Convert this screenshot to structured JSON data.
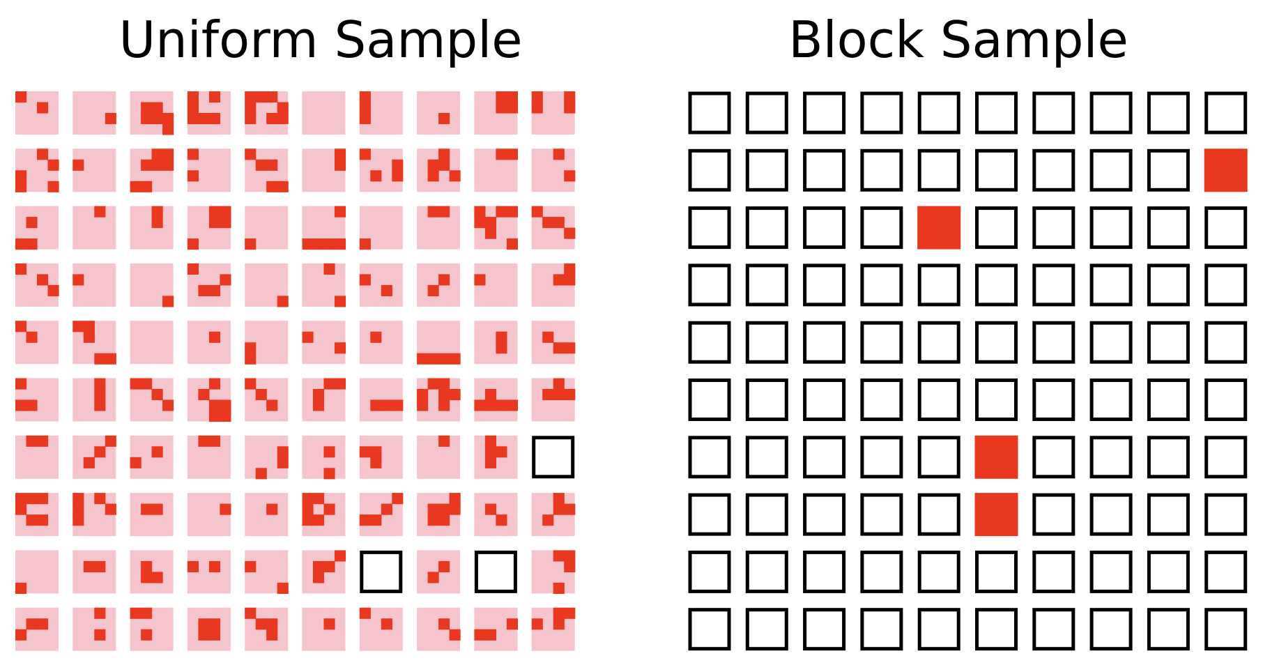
{
  "panels": {
    "uniform": {
      "title": "Uniform Sample"
    },
    "block": {
      "title": "Block Sample"
    }
  },
  "colors": {
    "tile_background": "#f5c4cc",
    "active_cell": "#e8381f",
    "empty_outline": "#000000",
    "page_background": "#ffffff"
  },
  "grid": {
    "rows": 10,
    "cols": 10,
    "sub_cells": 4
  },
  "uniform_tiles": [
    [
      [
        "1000",
        "0010",
        "0000",
        "0000"
      ],
      [
        "0000",
        "0000",
        "0001",
        "0000"
      ],
      [
        "0000",
        "0110",
        "0111",
        "0001"
      ],
      [
        "1010",
        "1000",
        "1110",
        "0000"
      ],
      [
        "1110",
        "1001",
        "1011",
        "0000"
      ],
      [
        "0000",
        "0000",
        "0000",
        "0000"
      ],
      [
        "1000",
        "1000",
        "1000",
        "0000"
      ],
      [
        "0000",
        "0000",
        "0010",
        "0000"
      ],
      [
        "0011",
        "0011",
        "0000",
        "0000"
      ],
      [
        "1001",
        "1001",
        "0000",
        "0000"
      ]
    ],
    [
      [
        "0010",
        "0001",
        "1000",
        "1001"
      ],
      [
        "0000",
        "1000",
        "0000",
        "0000"
      ],
      [
        "0011",
        "0111",
        "0000",
        "1100"
      ],
      [
        "1000",
        "0000",
        "1000",
        "0000"
      ],
      [
        "1000",
        "0110",
        "0000",
        "0011"
      ],
      [
        "0001",
        "0001",
        "0000",
        "0000"
      ],
      [
        "1000",
        "0001",
        "0101",
        "0000"
      ],
      [
        "0010",
        "0110",
        "0101",
        "0000"
      ],
      [
        "0011",
        "0000",
        "0000",
        "0000"
      ],
      [
        "0010",
        "0000",
        "0001",
        "0000"
      ]
    ],
    [
      [
        "0000",
        "0100",
        "0000",
        "1100"
      ],
      [
        "0010",
        "0000",
        "0000",
        "0000"
      ],
      [
        "0010",
        "0010",
        "0000",
        "0000"
      ],
      [
        "0011",
        "0011",
        "0000",
        "1000"
      ],
      [
        "0000",
        "0000",
        "0000",
        "1000"
      ],
      [
        "0001",
        "0000",
        "0000",
        "1111"
      ],
      [
        "0000",
        "0000",
        "0000",
        "1000"
      ],
      [
        "0110",
        "0000",
        "0000",
        "0000"
      ],
      [
        "1011",
        "1100",
        "0100",
        "0001"
      ],
      [
        "1000",
        "0110",
        "0001",
        "0000"
      ]
    ],
    [
      [
        "1000",
        "0010",
        "0001",
        "0000"
      ],
      [
        "0000",
        "1000",
        "0000",
        "0000"
      ],
      [
        "0000",
        "0000",
        "0000",
        "0001"
      ],
      [
        "1000",
        "0001",
        "0110",
        "0000"
      ],
      [
        "0000",
        "0000",
        "0000",
        "0001"
      ],
      [
        "0010",
        "0000",
        "0000",
        "0001"
      ],
      [
        "0000",
        "1000",
        "0010",
        "0000"
      ],
      [
        "0000",
        "0010",
        "0100",
        "0000"
      ],
      [
        "0000",
        "1000",
        "0000",
        "0000"
      ],
      [
        "0001",
        "0011",
        "0000",
        "0000"
      ]
    ],
    [
      [
        "1000",
        "0100",
        "0000",
        "0000"
      ],
      [
        "1100",
        "0100",
        "0000",
        "0011"
      ],
      [
        "0000",
        "0000",
        "0000",
        "0000"
      ],
      [
        "0000",
        "0010",
        "0000",
        "0000"
      ],
      [
        "0000",
        "0000",
        "1000",
        "1000"
      ],
      [
        "0000",
        "1000",
        "0001",
        "0000"
      ],
      [
        "0000",
        "0100",
        "0000",
        "0000"
      ],
      [
        "0000",
        "0000",
        "0000",
        "1111"
      ],
      [
        "0000",
        "0010",
        "0010",
        "0000"
      ],
      [
        "0000",
        "0100",
        "0011",
        "0000"
      ]
    ],
    [
      [
        "1000",
        "0000",
        "1100",
        "0000"
      ],
      [
        "0010",
        "0010",
        "0010",
        "0000"
      ],
      [
        "1100",
        "0010",
        "0001",
        "0000"
      ],
      [
        "0010",
        "0100",
        "0011",
        "0011"
      ],
      [
        "1000",
        "0100",
        "0010",
        "0000"
      ],
      [
        "0011",
        "0100",
        "0100",
        "0000"
      ],
      [
        "0000",
        "0000",
        "0111",
        "0000"
      ],
      [
        "0110",
        "1011",
        "1010",
        "0000"
      ],
      [
        "0000",
        "0100",
        "1111",
        "0000"
      ],
      [
        "0010",
        "0111",
        "0000",
        "0000"
      ]
    ],
    [
      [
        "0110",
        "0000",
        "0000",
        "0000"
      ],
      [
        "0001",
        "0010",
        "0100",
        "0000"
      ],
      [
        "0000",
        "0010",
        "1000",
        "0000"
      ],
      [
        "0110",
        "0000",
        "0000",
        "0000"
      ],
      [
        "0000",
        "0001",
        "0001",
        "0100"
      ],
      [
        "0000",
        "0010",
        "0000",
        "0010"
      ],
      [
        "0000",
        "1100",
        "0100",
        "0000"
      ],
      [
        "0010",
        "0000",
        "0000",
        "0000"
      ],
      [
        "0100",
        "0110",
        "0100",
        "0000"
      ],
      [
        "E",
        "",
        "",
        ""
      ]
    ],
    [
      [
        "1110",
        "1000",
        "0110",
        "0000"
      ],
      [
        "1010",
        "1001",
        "1000",
        "0000"
      ],
      [
        "0000",
        "0110",
        "0000",
        "0000"
      ],
      [
        "0000",
        "0001",
        "0000",
        "0000"
      ],
      [
        "0000",
        "0010",
        "0000",
        "0000"
      ],
      [
        "1100",
        "1010",
        "1100",
        "0000"
      ],
      [
        "0001",
        "0010",
        "1100",
        "0000"
      ],
      [
        "0001",
        "0111",
        "0110",
        "0000"
      ],
      [
        "0000",
        "0100",
        "0010",
        "0000"
      ],
      [
        "0010",
        "0011",
        "0100",
        "0000"
      ]
    ],
    [
      [
        "0000",
        "0000",
        "0000",
        "1000"
      ],
      [
        "0000",
        "0110",
        "0000",
        "0000"
      ],
      [
        "0000",
        "0100",
        "0110",
        "0000"
      ],
      [
        "0000",
        "1010",
        "0000",
        "0000"
      ],
      [
        "0000",
        "1000",
        "0000",
        "0001"
      ],
      [
        "0001",
        "0110",
        "0100",
        "0000"
      ],
      [
        "E",
        "",
        "",
        ""
      ],
      [
        "0000",
        "0010",
        "0100",
        "0000"
      ],
      [
        "E",
        "",
        "",
        ""
      ],
      [
        "0011",
        "0001",
        "0000",
        "0010"
      ]
    ],
    [
      [
        "0000",
        "0110",
        "1000",
        "0000"
      ],
      [
        "0010",
        "0000",
        "0010",
        "0000"
      ],
      [
        "1100",
        "0000",
        "0100",
        "0000"
      ],
      [
        "0000",
        "0110",
        "0110",
        "0000"
      ],
      [
        "1000",
        "0110",
        "0010",
        "0000"
      ],
      [
        "0000",
        "0010",
        "0000",
        "0000"
      ],
      [
        "1000",
        "0010",
        "0000",
        "0000"
      ],
      [
        "0000",
        "0010",
        "0001",
        "0000"
      ],
      [
        "0000",
        "0001",
        "1100",
        "0000"
      ],
      [
        "0011",
        "1010",
        "0000",
        "0000"
      ]
    ]
  ],
  "block_filled": [
    [
      1,
      9
    ],
    [
      2,
      4
    ],
    [
      6,
      5
    ],
    [
      7,
      5
    ]
  ]
}
